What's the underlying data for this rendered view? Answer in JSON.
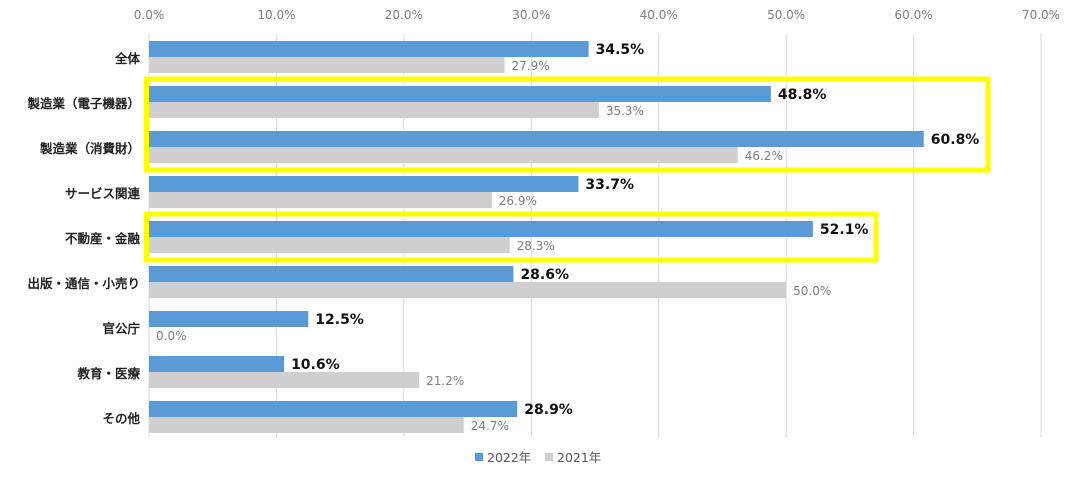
{
  "chart_data": {
    "type": "bar",
    "orientation": "horizontal",
    "xlim": [
      0,
      70
    ],
    "x_ticks": [
      "0.0%",
      "10.0%",
      "20.0%",
      "30.0%",
      "40.0%",
      "50.0%",
      "60.0%",
      "70.0%"
    ],
    "tick_step": 10,
    "grid": "vertical",
    "categories": [
      "全体",
      "製造業（電子機器）",
      "製造業（消費財）",
      "サービス関連",
      "不動産・金融",
      "出版・通信・小売り",
      "官公庁",
      "教育・医療",
      "その他"
    ],
    "series": [
      {
        "name": "2022年",
        "values": [
          34.5,
          48.8,
          60.8,
          33.7,
          52.1,
          28.6,
          12.5,
          10.6,
          28.9
        ],
        "labels": [
          "34.5%",
          "48.8%",
          "60.8%",
          "33.7%",
          "52.1%",
          "28.6%",
          "12.5%",
          "10.6%",
          "28.9%"
        ]
      },
      {
        "name": "2021年",
        "values": [
          27.9,
          35.3,
          46.2,
          26.9,
          28.3,
          50.0,
          0.0,
          21.2,
          24.7
        ],
        "labels": [
          "27.9%",
          "35.3%",
          "46.2%",
          "26.9%",
          "28.3%",
          "50.0%",
          "0.0%",
          "21.2%",
          "24.7%"
        ]
      }
    ],
    "legend_position": "bottom",
    "highlight_groups": [
      [
        "製造業（電子機器）",
        "製造業（消費財）"
      ],
      [
        "不動産・金融"
      ]
    ]
  },
  "colors": {
    "series_2022": "#5b9bd5",
    "series_2021": "#d0cece",
    "grid": "#d9d9d9",
    "highlight": "#ffff00"
  }
}
